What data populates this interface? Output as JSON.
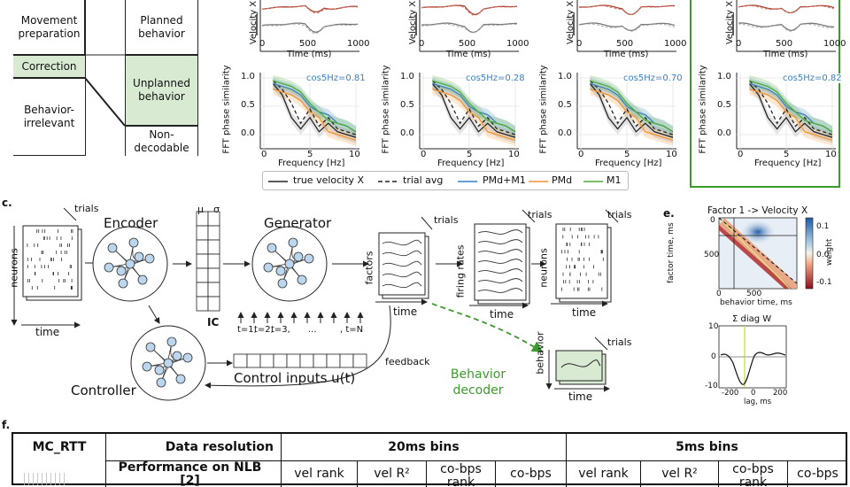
{
  "panel_a": {
    "cells": [
      "Movement preparation",
      "Planned behavior",
      "Correction",
      "Unplanned behavior",
      "Behavior-irrelevant",
      "Non-decodable"
    ]
  },
  "panel_b": {
    "velocity_ylabel": "Velocity X",
    "time_xlabel": "Time (ms)",
    "fft_ylabel": "FFT phase similarity",
    "freq_xlabel": "Frequency [Hz]",
    "time_ticks": [
      "0",
      "500",
      "1000"
    ],
    "freq_ticks": [
      "0",
      "5",
      "10"
    ],
    "y_ticks": [
      "1.0",
      "0.5",
      "0.0"
    ],
    "cos_labels": [
      "cos5Hz=0.81",
      "cos5Hz=0.28",
      "cos5Hz=0.70",
      "cos5Hz=0.82"
    ],
    "legend": [
      "true velocity X",
      "trial avg",
      "PMd+M1",
      "PMd",
      "M1"
    ]
  },
  "panel_c": {
    "label": "c.",
    "neurons": "neurons",
    "trials": "trials",
    "time": "time",
    "encoder": "Encoder",
    "generator": "Generator",
    "controller": "Controller",
    "mu": "μ",
    "sigma": "σ",
    "ic": "IC",
    "factors": "factors",
    "firing_rates": "firing rates",
    "behavior": "behavior",
    "behavior_decoder": "Behavior decoder",
    "feedback": "feedback",
    "control_inputs": "Control inputs u(t)",
    "timesteps": [
      "t=1,",
      "t=2,",
      "t=3,",
      "...",
      ", t=N"
    ]
  },
  "panel_e": {
    "label": "e.",
    "title": "Factor 1 -> Velocity X",
    "ylabel": "factor time, ms",
    "xlabel": "behavior time, ms",
    "yticks": [
      "0",
      "500"
    ],
    "xticks": [
      "0",
      "500"
    ],
    "cbar_ticks": [
      "0.1",
      "0.0",
      "-0.1"
    ],
    "cbar_label": "weight",
    "sub_title": "Σ diag W",
    "sub_yticks": [
      "10",
      "0",
      "-10"
    ],
    "sub_xticks": [
      "-200",
      "0",
      "200"
    ],
    "sub_xlabel": "lag, ms"
  },
  "panel_f": {
    "label": "f.",
    "dataset": "MC_RTT",
    "data_resolution": "Data resolution",
    "bins_20": "20ms bins",
    "bins_5": "5ms bins",
    "performance": "Performance on NLB [2]",
    "metrics": [
      "vel rank",
      "vel R²",
      "co-bps rank",
      "co-bps",
      "vel rank",
      "vel R²",
      "co-bps rank",
      "co-bps"
    ]
  },
  "colors": {
    "true_velocity": "#222222",
    "pmd_m1": "#3a7fc0",
    "pmd": "#f0922e",
    "m1": "#4caa3a",
    "highlight": "#3a9a2a",
    "shade": "#d8ead2",
    "decoder": "#3f9a2f"
  }
}
